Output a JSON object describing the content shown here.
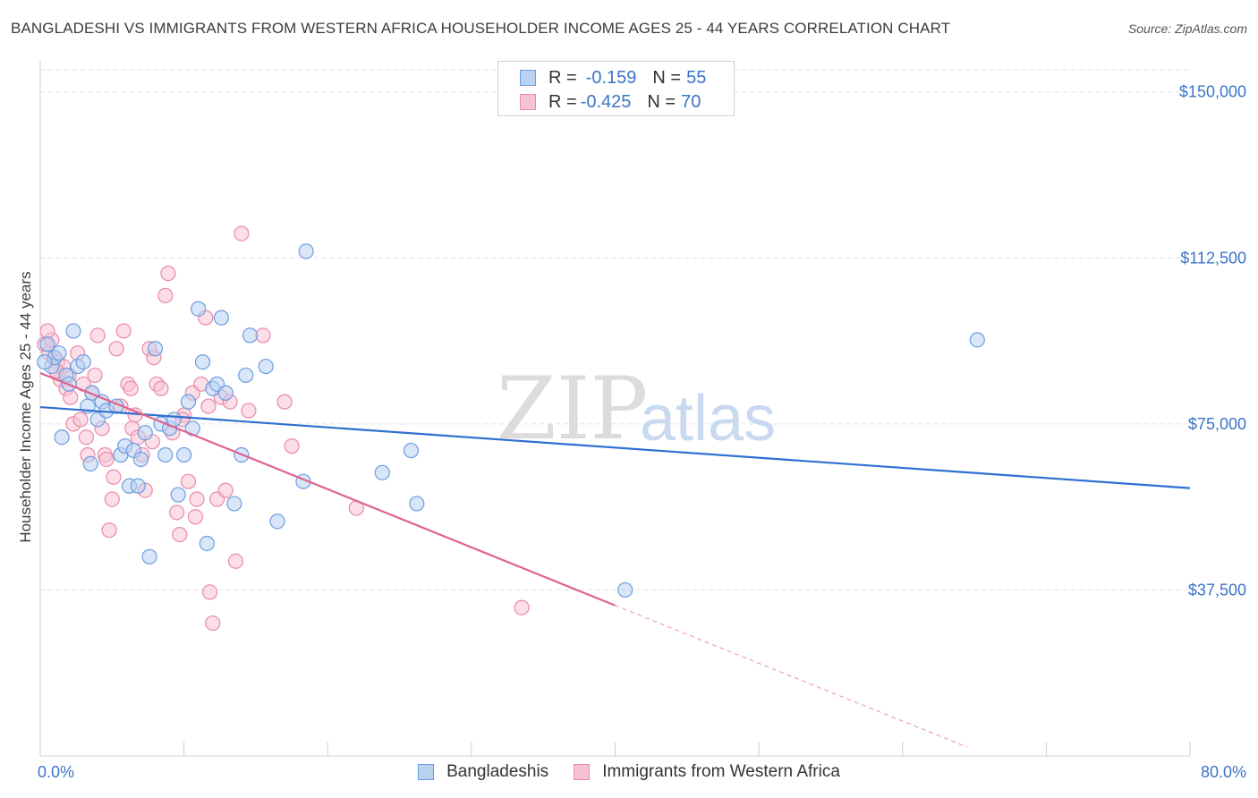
{
  "title": "BANGLADESHI VS IMMIGRANTS FROM WESTERN AFRICA HOUSEHOLDER INCOME AGES 25 - 44 YEARS CORRELATION CHART",
  "source": "Source: ZipAtlas.com",
  "watermark": {
    "zip": "ZIP",
    "atlas": "atlas"
  },
  "legend": {
    "r_label": "R =",
    "n_label": "N =",
    "rows": [
      {
        "r": "-0.159",
        "n": "55"
      },
      {
        "r": "-0.425",
        "n": "70"
      }
    ]
  },
  "bottom_legend": [
    "Bangladeshis",
    "Immigrants from Western Africa"
  ],
  "colors": {
    "blue_fill": "#b9d2f2",
    "blue_stroke": "#6b9de0",
    "blue_line": "#2f6fd0",
    "pink_fill": "#f7c3d4",
    "pink_stroke": "#e98aa9",
    "pink_line": "#e0628f",
    "tick_text": "#3a74c8",
    "grid": "#e3e3e3"
  },
  "chart_data": {
    "type": "scatter",
    "title": "BANGLADESHI VS IMMIGRANTS FROM WESTERN AFRICA HOUSEHOLDER INCOME AGES 25 - 44 YEARS CORRELATION CHART",
    "xlabel": "",
    "ylabel": "Householder Income Ages 25 - 44 years",
    "xlim": [
      0,
      80
    ],
    "ylim": [
      0,
      155000
    ],
    "x_tick_labels": [
      "0.0%",
      "80.0%"
    ],
    "y_ticks": [
      {
        "value": 37500,
        "label": "$37,500"
      },
      {
        "value": 75000,
        "label": "$75,000"
      },
      {
        "value": 112500,
        "label": "$112,500"
      },
      {
        "value": 150000,
        "label": "$150,000"
      }
    ],
    "series": [
      {
        "name": "Bangladeshis",
        "R": -0.159,
        "N": 55,
        "trend": {
          "x": [
            0,
            80
          ],
          "y": [
            78800,
            60500
          ]
        },
        "points": [
          [
            0.5,
            93000
          ],
          [
            0.8,
            88000
          ],
          [
            1.0,
            90000
          ],
          [
            1.3,
            91000
          ],
          [
            1.5,
            72000
          ],
          [
            1.8,
            86000
          ],
          [
            2.0,
            84000
          ],
          [
            2.3,
            96000
          ],
          [
            2.6,
            88000
          ],
          [
            3.0,
            89000
          ],
          [
            3.3,
            79000
          ],
          [
            3.6,
            82000
          ],
          [
            4.0,
            76000
          ],
          [
            4.3,
            80000
          ],
          [
            4.6,
            78000
          ],
          [
            5.3,
            79000
          ],
          [
            5.6,
            68000
          ],
          [
            5.9,
            70000
          ],
          [
            6.2,
            61000
          ],
          [
            6.5,
            69000
          ],
          [
            6.8,
            61000
          ],
          [
            7.0,
            67000
          ],
          [
            7.3,
            73000
          ],
          [
            7.6,
            45000
          ],
          [
            8.0,
            92000
          ],
          [
            8.4,
            75000
          ],
          [
            8.7,
            68000
          ],
          [
            9.0,
            74000
          ],
          [
            9.3,
            76000
          ],
          [
            9.6,
            59000
          ],
          [
            10.0,
            68000
          ],
          [
            10.3,
            80000
          ],
          [
            10.6,
            74000
          ],
          [
            11.0,
            101000
          ],
          [
            11.3,
            89000
          ],
          [
            11.6,
            48000
          ],
          [
            12.0,
            83000
          ],
          [
            12.3,
            84000
          ],
          [
            12.6,
            99000
          ],
          [
            12.9,
            82000
          ],
          [
            13.5,
            57000
          ],
          [
            14.0,
            68000
          ],
          [
            14.3,
            86000
          ],
          [
            14.6,
            95000
          ],
          [
            15.7,
            88000
          ],
          [
            16.5,
            53000
          ],
          [
            18.3,
            62000
          ],
          [
            18.5,
            114000
          ],
          [
            23.8,
            64000
          ],
          [
            25.8,
            69000
          ],
          [
            26.2,
            57000
          ],
          [
            40.7,
            37500
          ],
          [
            65.2,
            94000
          ],
          [
            0.3,
            89000
          ],
          [
            3.5,
            66000
          ]
        ]
      },
      {
        "name": "Immigrants from Western Africa",
        "R": -0.425,
        "N": 70,
        "trend": {
          "x": [
            0,
            40
          ],
          "y": [
            86500,
            34000
          ]
        },
        "trend_dashed": {
          "x": [
            40,
            64.5
          ],
          "y": [
            34000,
            2000
          ]
        },
        "points": [
          [
            0.3,
            93000
          ],
          [
            0.6,
            91000
          ],
          [
            0.8,
            94000
          ],
          [
            1.0,
            90000
          ],
          [
            1.2,
            89000
          ],
          [
            1.4,
            85000
          ],
          [
            1.6,
            88000
          ],
          [
            1.8,
            83000
          ],
          [
            2.0,
            86000
          ],
          [
            2.3,
            75000
          ],
          [
            2.6,
            91000
          ],
          [
            2.8,
            76000
          ],
          [
            3.0,
            84000
          ],
          [
            3.3,
            68000
          ],
          [
            3.6,
            82000
          ],
          [
            3.8,
            86000
          ],
          [
            4.0,
            95000
          ],
          [
            4.3,
            74000
          ],
          [
            4.5,
            68000
          ],
          [
            4.8,
            51000
          ],
          [
            5.0,
            58000
          ],
          [
            5.3,
            92000
          ],
          [
            5.6,
            79000
          ],
          [
            5.8,
            96000
          ],
          [
            6.1,
            84000
          ],
          [
            6.4,
            74000
          ],
          [
            6.6,
            77000
          ],
          [
            6.8,
            72000
          ],
          [
            7.1,
            68000
          ],
          [
            7.3,
            60000
          ],
          [
            7.6,
            92000
          ],
          [
            7.9,
            90000
          ],
          [
            8.1,
            84000
          ],
          [
            8.4,
            83000
          ],
          [
            8.7,
            104000
          ],
          [
            8.9,
            109000
          ],
          [
            9.2,
            73000
          ],
          [
            9.5,
            55000
          ],
          [
            9.7,
            50000
          ],
          [
            10.0,
            77000
          ],
          [
            10.3,
            62000
          ],
          [
            10.6,
            82000
          ],
          [
            10.9,
            58000
          ],
          [
            11.2,
            84000
          ],
          [
            11.5,
            99000
          ],
          [
            11.8,
            37000
          ],
          [
            12.0,
            30000
          ],
          [
            12.3,
            58000
          ],
          [
            12.6,
            81000
          ],
          [
            12.9,
            60000
          ],
          [
            13.2,
            80000
          ],
          [
            13.6,
            44000
          ],
          [
            14.0,
            118000
          ],
          [
            14.5,
            78000
          ],
          [
            15.5,
            95000
          ],
          [
            17.0,
            80000
          ],
          [
            17.5,
            70000
          ],
          [
            22.0,
            56000
          ],
          [
            33.5,
            33500
          ],
          [
            0.5,
            96000
          ],
          [
            1.1,
            87000
          ],
          [
            2.1,
            81000
          ],
          [
            4.6,
            67000
          ],
          [
            6.3,
            83000
          ],
          [
            7.8,
            71000
          ],
          [
            9.9,
            76000
          ],
          [
            11.7,
            79000
          ],
          [
            10.8,
            54000
          ],
          [
            3.2,
            72000
          ],
          [
            5.1,
            63000
          ]
        ]
      }
    ]
  }
}
